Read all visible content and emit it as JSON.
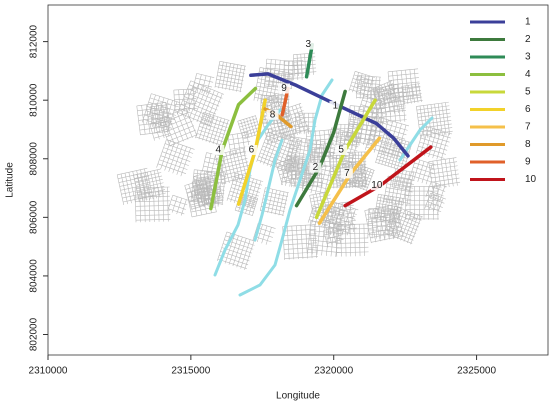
{
  "chart_data": {
    "type": "map",
    "x_label": "Longitude",
    "y_label": "Latitude",
    "xlim": [
      2310000,
      2327500
    ],
    "ylim": [
      801300,
      813250
    ],
    "xticks": [
      2310000,
      2315000,
      2320000,
      2325000
    ],
    "yticks": [
      802000,
      804000,
      806000,
      808000,
      810000,
      812000
    ],
    "series": [
      {
        "name": "1",
        "color": "#3b3f99",
        "x": [
          2317100,
          2317700,
          2318700,
          2320200,
          2321500,
          2322100,
          2322600
        ],
        "y": [
          810850,
          810900,
          810500,
          809800,
          809200,
          808700,
          808100
        ]
      },
      {
        "name": "2",
        "color": "#3d7a3d",
        "x": [
          2318700,
          2319500,
          2320000,
          2320400
        ],
        "y": [
          806400,
          807700,
          808900,
          810300
        ]
      },
      {
        "name": "3",
        "color": "#2e8b57",
        "x": [
          2319250,
          2319050
        ],
        "y": [
          811900,
          810800
        ]
      },
      {
        "name": "4",
        "color": "#8cbf3f",
        "x": [
          2315700,
          2316100,
          2316670,
          2317260
        ],
        "y": [
          806300,
          808300,
          809850,
          810400
        ]
      },
      {
        "name": "5",
        "color": "#c8d83a",
        "x": [
          2319400,
          2320400,
          2321450
        ],
        "y": [
          806000,
          808300,
          810000
        ]
      },
      {
        "name": "6",
        "color": "#f2d22a",
        "x": [
          2316670,
          2317260,
          2317600
        ],
        "y": [
          806450,
          808300,
          810000
        ]
      },
      {
        "name": "7",
        "color": "#f5c04a",
        "x": [
          2319500,
          2320600,
          2321600
        ],
        "y": [
          805800,
          807500,
          808700
        ]
      },
      {
        "name": "8",
        "color": "#e09a2a",
        "x": [
          2317600,
          2318000,
          2318500
        ],
        "y": [
          809700,
          809500,
          809100
        ]
      },
      {
        "name": "9",
        "color": "#e0602a",
        "x": [
          2318400,
          2318200
        ],
        "y": [
          810400,
          809500
        ]
      },
      {
        "name": "10",
        "color": "#c0141b",
        "x": [
          2320400,
          2321650,
          2323400
        ],
        "y": [
          806400,
          807100,
          808400
        ]
      }
    ]
  }
}
